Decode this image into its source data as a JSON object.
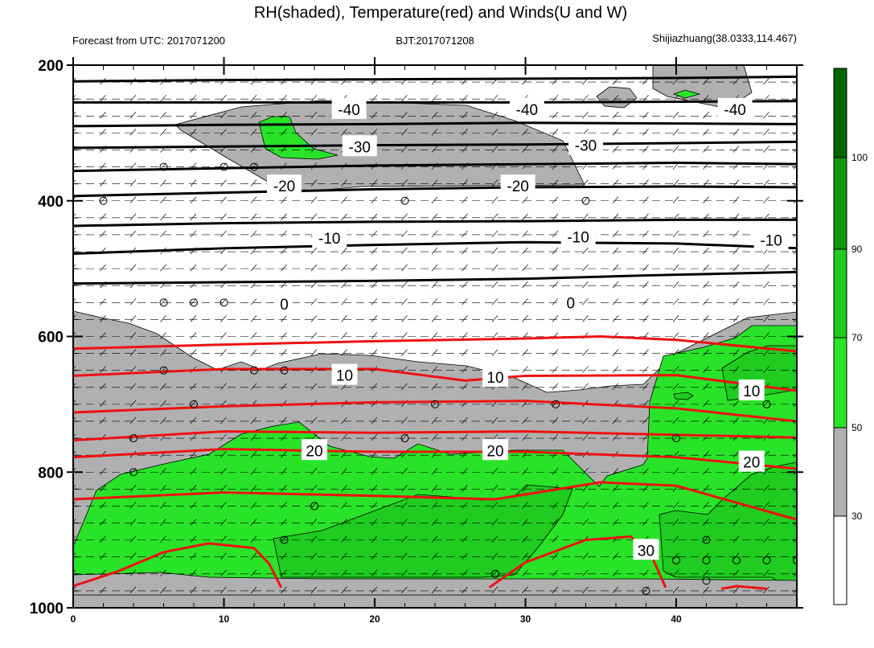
{
  "title": "RH(shaded), Temperature(red) and Winds(U and W)",
  "subtitle_left": "Forecast from UTC: 2017071200",
  "subtitle_center": "BJT:2017071208",
  "subtitle_right": "Shijiazhuang(38.0333,114.467)",
  "colors": {
    "rh_30_50": "#b0b0b0",
    "rh_50_70": "#29e329",
    "rh_70_90": "#1fcc1f",
    "rh_90_100": "#0a8f0a",
    "rh_100plus": "#006400",
    "temperature_warm": "#ee1111",
    "temperature_cold": "#000000"
  },
  "chart_data": {
    "type": "contour",
    "xlim": [
      0,
      48
    ],
    "ylim": [
      1000,
      200
    ],
    "x_ticks": [
      "0",
      "10",
      "20",
      "30",
      "40"
    ],
    "y_ticks": [
      "200",
      "400",
      "600",
      "800",
      "1000"
    ],
    "colorbar": {
      "levels": [
        "30",
        "50",
        "70",
        "90",
        "100"
      ],
      "colors": [
        "#ffffff",
        "#b0b0b0",
        "#29e329",
        "#1fcc1f",
        "#119811",
        "#0a8f0a",
        "#006400"
      ]
    },
    "temperature_labels": [
      {
        "text": "-40",
        "x": 18.3,
        "p": 265
      },
      {
        "text": "-40",
        "x": 30.1,
        "p": 265
      },
      {
        "text": "-40",
        "x": 43.9,
        "p": 265
      },
      {
        "text": "-30",
        "x": 19.0,
        "p": 320
      },
      {
        "text": "-30",
        "x": 34.0,
        "p": 318
      },
      {
        "text": "-20",
        "x": 14.0,
        "p": 378
      },
      {
        "text": "-20",
        "x": 29.5,
        "p": 378
      },
      {
        "text": "-10",
        "x": 17.0,
        "p": 455
      },
      {
        "text": "-10",
        "x": 33.5,
        "p": 453
      },
      {
        "text": "-10",
        "x": 46.3,
        "p": 458
      },
      {
        "text": "0",
        "x": 14.0,
        "p": 552
      },
      {
        "text": "0",
        "x": 33.0,
        "p": 550
      },
      {
        "text": "10",
        "x": 18.0,
        "p": 657
      },
      {
        "text": "10",
        "x": 28.0,
        "p": 660
      },
      {
        "text": "10",
        "x": 45.0,
        "p": 680
      },
      {
        "text": "20",
        "x": 16.0,
        "p": 768
      },
      {
        "text": "20",
        "x": 28.0,
        "p": 768
      },
      {
        "text": "20",
        "x": 45.0,
        "p": 785
      },
      {
        "text": "30",
        "x": 38.0,
        "p": 915
      }
    ],
    "temperature_isotherms": [
      {
        "value": -40,
        "points": [
          [
            0,
            224
          ],
          [
            10,
            222
          ],
          [
            20,
            221
          ],
          [
            30,
            220
          ],
          [
            40,
            219
          ],
          [
            48,
            217
          ]
        ]
      },
      {
        "value": -40,
        "points": [
          [
            0,
            255
          ],
          [
            10,
            255
          ],
          [
            20,
            255
          ],
          [
            30,
            255
          ],
          [
            40,
            254
          ],
          [
            48,
            253
          ]
        ]
      },
      {
        "value": -30,
        "points": [
          [
            0,
            290
          ],
          [
            10,
            288
          ],
          [
            20,
            287
          ],
          [
            30,
            285
          ],
          [
            40,
            286
          ],
          [
            48,
            287
          ]
        ]
      },
      {
        "value": -30,
        "points": [
          [
            0,
            322
          ],
          [
            10,
            320
          ],
          [
            20,
            318
          ],
          [
            30,
            317
          ],
          [
            40,
            315
          ],
          [
            48,
            313
          ]
        ]
      },
      {
        "value": -20,
        "points": [
          [
            0,
            356
          ],
          [
            10,
            352
          ],
          [
            20,
            348
          ],
          [
            30,
            346
          ],
          [
            40,
            344
          ],
          [
            48,
            346
          ]
        ]
      },
      {
        "value": -20,
        "points": [
          [
            0,
            393
          ],
          [
            10,
            388
          ],
          [
            20,
            383
          ],
          [
            30,
            380
          ],
          [
            40,
            379
          ],
          [
            48,
            380
          ]
        ]
      },
      {
        "value": -10,
        "points": [
          [
            0,
            437
          ],
          [
            10,
            433
          ],
          [
            20,
            431
          ],
          [
            30,
            430
          ],
          [
            40,
            428
          ],
          [
            48,
            428
          ]
        ]
      },
      {
        "value": -10,
        "points": [
          [
            0,
            478
          ],
          [
            10,
            470
          ],
          [
            20,
            465
          ],
          [
            30,
            461
          ],
          [
            40,
            463
          ],
          [
            48,
            470
          ]
        ]
      },
      {
        "value": -10,
        "points": [
          [
            0,
            522
          ],
          [
            10,
            520
          ],
          [
            20,
            518
          ],
          [
            30,
            515
          ],
          [
            38,
            510
          ],
          [
            48,
            505
          ]
        ]
      },
      {
        "value": 10,
        "points": [
          [
            0,
            618
          ],
          [
            10,
            612
          ],
          [
            20,
            607
          ],
          [
            30,
            603
          ],
          [
            35,
            600
          ],
          [
            40,
            605
          ],
          [
            48,
            622
          ]
        ]
      },
      {
        "value": 10,
        "points": [
          [
            0,
            658
          ],
          [
            10,
            648
          ],
          [
            20,
            648
          ],
          [
            26,
            665
          ],
          [
            30,
            658
          ],
          [
            40,
            657
          ],
          [
            48,
            680
          ]
        ]
      },
      {
        "value": 10,
        "points": [
          [
            0,
            712
          ],
          [
            10,
            703
          ],
          [
            20,
            697
          ],
          [
            30,
            695
          ],
          [
            40,
            706
          ],
          [
            48,
            725
          ]
        ]
      },
      {
        "value": 20,
        "points": [
          [
            0,
            753
          ],
          [
            10,
            740
          ],
          [
            20,
            742
          ],
          [
            30,
            740
          ],
          [
            40,
            745
          ],
          [
            48,
            749
          ]
        ]
      },
      {
        "value": 20,
        "points": [
          [
            0,
            778
          ],
          [
            10,
            766
          ],
          [
            20,
            770
          ],
          [
            30,
            770
          ],
          [
            40,
            778
          ],
          [
            48,
            795
          ]
        ]
      },
      {
        "value": 20,
        "points": [
          [
            0,
            840
          ],
          [
            10,
            830
          ],
          [
            20,
            835
          ],
          [
            28,
            840
          ],
          [
            35,
            815
          ],
          [
            40,
            820
          ],
          [
            48,
            870
          ]
        ]
      },
      {
        "value": 30,
        "points": [
          [
            0,
            968
          ],
          [
            3,
            946
          ],
          [
            6,
            918
          ],
          [
            9,
            905
          ],
          [
            12,
            912
          ],
          [
            13,
            935
          ],
          [
            13.8,
            970
          ]
        ]
      },
      {
        "value": 30,
        "points": [
          [
            27.6,
            970
          ],
          [
            30,
            933
          ],
          [
            34,
            900
          ],
          [
            37,
            895
          ],
          [
            38.4,
            925
          ],
          [
            39.3,
            970
          ]
        ]
      },
      {
        "value": 30,
        "points": [
          [
            43,
            972
          ],
          [
            44,
            968
          ],
          [
            46,
            972
          ]
        ]
      }
    ],
    "wind_calm_points": [
      [
        6,
        350
      ],
      [
        10,
        350
      ],
      [
        12,
        350
      ],
      [
        2,
        400
      ],
      [
        22,
        400
      ],
      [
        34,
        400
      ],
      [
        6,
        550
      ],
      [
        8,
        550
      ],
      [
        10,
        550
      ],
      [
        6,
        650
      ],
      [
        12,
        650
      ],
      [
        14,
        650
      ],
      [
        8,
        700
      ],
      [
        24,
        700
      ],
      [
        32,
        700
      ],
      [
        46,
        700
      ],
      [
        4,
        750
      ],
      [
        22,
        750
      ],
      [
        40,
        750
      ],
      [
        4,
        800
      ],
      [
        16,
        850
      ],
      [
        14,
        900
      ],
      [
        42,
        900
      ],
      [
        28,
        950
      ],
      [
        40,
        930
      ],
      [
        42,
        930
      ],
      [
        44,
        930
      ],
      [
        46,
        930
      ],
      [
        48,
        930
      ],
      [
        42,
        960
      ],
      [
        38,
        975
      ]
    ]
  }
}
